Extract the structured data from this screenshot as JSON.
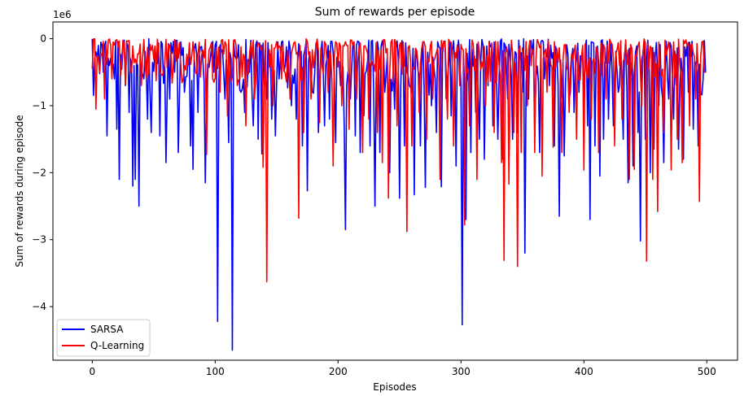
{
  "chart_data": {
    "type": "line",
    "title": "Sum of rewards per episode",
    "xlabel": "Episodes",
    "ylabel": "Sum of rewards during episode",
    "y_offset_text": "1e6",
    "xlim": [
      -32,
      525
    ],
    "ylim": [
      -4.8,
      0.25
    ],
    "x_ticks": [
      0,
      100,
      200,
      300,
      400,
      500
    ],
    "x_tick_labels": [
      "0",
      "100",
      "200",
      "300",
      "400",
      "500"
    ],
    "y_ticks": [
      0,
      -1,
      -2,
      -3,
      -4
    ],
    "y_tick_labels": [
      "0",
      "−1",
      "−2",
      "−3",
      "−4"
    ],
    "grid": false,
    "legend_position": "lower-left",
    "episodes": 500,
    "series": [
      {
        "name": "SARSA",
        "color": "#0000ff",
        "noise_floor": -0.85,
        "spikes": [
          [
            2,
            -0.3
          ],
          [
            5,
            -0.1
          ],
          [
            9,
            -0.5
          ],
          [
            12,
            -1.45
          ],
          [
            14,
            -0.4
          ],
          [
            18,
            -0.6
          ],
          [
            20,
            -1.35
          ],
          [
            22,
            -2.1
          ],
          [
            27,
            -0.7
          ],
          [
            30,
            -1.1
          ],
          [
            33,
            -2.2
          ],
          [
            35,
            -2.1
          ],
          [
            37,
            -0.4
          ],
          [
            38,
            -2.5
          ],
          [
            42,
            -0.6
          ],
          [
            45,
            -1.2
          ],
          [
            48,
            -1.4
          ],
          [
            52,
            -0.3
          ],
          [
            55,
            -1.45
          ],
          [
            60,
            -1.85
          ],
          [
            63,
            -0.9
          ],
          [
            67,
            -0.5
          ],
          [
            70,
            -1.7
          ],
          [
            75,
            -0.8
          ],
          [
            80,
            -1.6
          ],
          [
            82,
            -1.95
          ],
          [
            86,
            -1.1
          ],
          [
            92,
            -2.15
          ],
          [
            96,
            -0.3
          ],
          [
            99,
            -0.5
          ],
          [
            102,
            -4.22
          ],
          [
            105,
            -0.2
          ],
          [
            108,
            -0.9
          ],
          [
            111,
            -1.55
          ],
          [
            114,
            -4.65
          ],
          [
            117,
            -0.3
          ],
          [
            121,
            -0.8
          ],
          [
            124,
            -1.1
          ],
          [
            128,
            -0.5
          ],
          [
            131,
            -1.3
          ],
          [
            135,
            -1.5
          ],
          [
            138,
            -1.72
          ],
          [
            142,
            -0.9
          ],
          [
            146,
            -1.2
          ],
          [
            149,
            -1.45
          ],
          [
            152,
            -0.6
          ],
          [
            157,
            -0.4
          ],
          [
            162,
            -1.0
          ],
          [
            166,
            -1.2
          ],
          [
            171,
            -1.6
          ],
          [
            175,
            -2.27
          ],
          [
            179,
            -0.8
          ],
          [
            184,
            -1.4
          ],
          [
            189,
            -1.3
          ],
          [
            193,
            -1.2
          ],
          [
            198,
            -1.55
          ],
          [
            202,
            -0.7
          ],
          [
            205,
            -1.3
          ],
          [
            206,
            -2.85
          ],
          [
            210,
            -0.9
          ],
          [
            214,
            -1.45
          ],
          [
            218,
            -1.7
          ],
          [
            221,
            -1.15
          ],
          [
            226,
            -1.6
          ],
          [
            230,
            -2.5
          ],
          [
            234,
            -1.7
          ],
          [
            238,
            -0.8
          ],
          [
            242,
            -2.0
          ],
          [
            246,
            -1.05
          ],
          [
            250,
            -2.38
          ],
          [
            254,
            -1.6
          ],
          [
            258,
            -0.7
          ],
          [
            262,
            -2.33
          ],
          [
            267,
            -1.6
          ],
          [
            271,
            -2.22
          ],
          [
            276,
            -1.0
          ],
          [
            280,
            -1.4
          ],
          [
            284,
            -2.21
          ],
          [
            288,
            -0.9
          ],
          [
            292,
            -1.15
          ],
          [
            296,
            -1.9
          ],
          [
            301,
            -4.27
          ],
          [
            304,
            -2.7
          ],
          [
            308,
            -1.7
          ],
          [
            312,
            -1.1
          ],
          [
            315,
            -1.5
          ],
          [
            319,
            -1.8
          ],
          [
            322,
            -0.7
          ],
          [
            326,
            -1.3
          ],
          [
            330,
            -1.5
          ],
          [
            334,
            -1.8
          ],
          [
            338,
            -0.9
          ],
          [
            342,
            -1.5
          ],
          [
            346,
            -1.4
          ],
          [
            350,
            -0.8
          ],
          [
            352,
            -3.2
          ],
          [
            355,
            -0.9
          ],
          [
            360,
            -1.35
          ],
          [
            364,
            -1.7
          ],
          [
            368,
            -0.6
          ],
          [
            372,
            -0.7
          ],
          [
            376,
            -1.6
          ],
          [
            380,
            -2.65
          ],
          [
            384,
            -1.75
          ],
          [
            388,
            -0.9
          ],
          [
            392,
            -1.1
          ],
          [
            396,
            -0.8
          ],
          [
            400,
            -1.0
          ],
          [
            403,
            -1.3
          ],
          [
            405,
            -2.7
          ],
          [
            409,
            -1.6
          ],
          [
            413,
            -2.05
          ],
          [
            416,
            -1.5
          ],
          [
            420,
            -1.2
          ],
          [
            424,
            -1.3
          ],
          [
            428,
            -0.8
          ],
          [
            432,
            -1.5
          ],
          [
            436,
            -2.15
          ],
          [
            440,
            -1.9
          ],
          [
            444,
            -1.4
          ],
          [
            446,
            -3.02
          ],
          [
            450,
            -1.5
          ],
          [
            454,
            -2.0
          ],
          [
            457,
            -1.65
          ],
          [
            461,
            -1.0
          ],
          [
            465,
            -1.85
          ],
          [
            469,
            -0.9
          ],
          [
            473,
            -1.2
          ],
          [
            477,
            -1.65
          ],
          [
            481,
            -1.8
          ],
          [
            485,
            -0.8
          ],
          [
            489,
            -1.35
          ],
          [
            493,
            -1.6
          ],
          [
            497,
            -0.6
          ]
        ],
        "seed": 7
      },
      {
        "name": "Q-Learning",
        "color": "#ff0000",
        "noise_floor": -0.65,
        "spikes": [
          [
            0,
            -0.45
          ],
          [
            3,
            -1.05
          ],
          [
            6,
            -0.5
          ],
          [
            10,
            -0.9
          ],
          [
            16,
            -0.6
          ],
          [
            24,
            -0.3
          ],
          [
            31,
            -0.5
          ],
          [
            40,
            -0.7
          ],
          [
            50,
            -0.3
          ],
          [
            58,
            -0.5
          ],
          [
            66,
            -0.4
          ],
          [
            74,
            -0.6
          ],
          [
            84,
            -0.5
          ],
          [
            93,
            -1.73
          ],
          [
            98,
            -0.6
          ],
          [
            104,
            -0.8
          ],
          [
            110,
            -1.15
          ],
          [
            118,
            -0.7
          ],
          [
            125,
            -1.3
          ],
          [
            132,
            -0.9
          ],
          [
            139,
            -1.92
          ],
          [
            142,
            -3.63
          ],
          [
            147,
            -1.0
          ],
          [
            154,
            -0.6
          ],
          [
            161,
            -0.9
          ],
          [
            168,
            -2.68
          ],
          [
            172,
            -1.4
          ],
          [
            178,
            -0.9
          ],
          [
            185,
            -1.25
          ],
          [
            192,
            -0.8
          ],
          [
            196,
            -1.9
          ],
          [
            203,
            -1.0
          ],
          [
            209,
            -1.35
          ],
          [
            215,
            -0.9
          ],
          [
            220,
            -1.7
          ],
          [
            225,
            -1.2
          ],
          [
            232,
            -1.4
          ],
          [
            236,
            -1.85
          ],
          [
            241,
            -2.38
          ],
          [
            248,
            -1.3
          ],
          [
            256,
            -2.88
          ],
          [
            260,
            -1.6
          ],
          [
            266,
            -1.1
          ],
          [
            272,
            -1.5
          ],
          [
            277,
            -0.9
          ],
          [
            283,
            -2.1
          ],
          [
            289,
            -1.2
          ],
          [
            294,
            -1.6
          ],
          [
            299,
            -0.7
          ],
          [
            303,
            -2.78
          ],
          [
            307,
            -1.3
          ],
          [
            313,
            -2.1
          ],
          [
            320,
            -1.0
          ],
          [
            327,
            -1.4
          ],
          [
            333,
            -1.85
          ],
          [
            335,
            -3.31
          ],
          [
            339,
            -2.17
          ],
          [
            343,
            -1.4
          ],
          [
            346,
            -3.4
          ],
          [
            349,
            -1.7
          ],
          [
            354,
            -1.0
          ],
          [
            360,
            -1.7
          ],
          [
            366,
            -2.05
          ],
          [
            370,
            -0.8
          ],
          [
            375,
            -1.62
          ],
          [
            382,
            -1.7
          ],
          [
            388,
            -1.1
          ],
          [
            394,
            -1.5
          ],
          [
            400,
            -1.96
          ],
          [
            406,
            -1.2
          ],
          [
            412,
            -1.7
          ],
          [
            418,
            -0.9
          ],
          [
            425,
            -1.6
          ],
          [
            431,
            -1.2
          ],
          [
            437,
            -2.1
          ],
          [
            441,
            -1.95
          ],
          [
            447,
            -1.0
          ],
          [
            451,
            -3.32
          ],
          [
            456,
            -2.1
          ],
          [
            460,
            -2.58
          ],
          [
            465,
            -1.4
          ],
          [
            471,
            -1.96
          ],
          [
            476,
            -1.5
          ],
          [
            480,
            -1.85
          ],
          [
            486,
            -1.3
          ],
          [
            491,
            -0.9
          ],
          [
            494,
            -2.43
          ],
          [
            498,
            -0.5
          ]
        ],
        "seed": 13
      }
    ]
  }
}
